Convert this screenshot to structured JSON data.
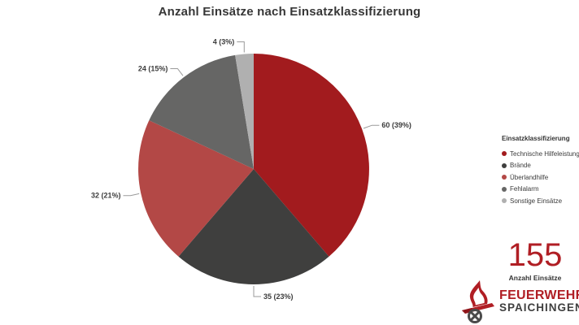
{
  "title": "Anzahl Einsätze nach Einsatzklassifizierung",
  "chart_data": {
    "type": "pie",
    "title": "Anzahl Einsätze nach Einsatzklassifizierung",
    "start_angle_deg": 0,
    "direction": "clockwise",
    "total": 155,
    "data_label_format": "value (percent)",
    "legend_position": "right",
    "series": [
      {
        "name": "Anzahl Einsätze",
        "points": [
          {
            "label": "Technische Hilfeleistung",
            "value": 60,
            "percent": "39%",
            "color": "#a21b1e"
          },
          {
            "label": "Brände",
            "value": 35,
            "percent": "23%",
            "color": "#3f3f3e"
          },
          {
            "label": "Überlandhilfe",
            "value": 32,
            "percent": "21%",
            "color": "#b34846"
          },
          {
            "label": "Fehlalarm",
            "value": 24,
            "percent": "15%",
            "color": "#666665"
          },
          {
            "label": "Sonstige Einsätze",
            "value": 4,
            "percent": "3%",
            "color": "#b0b0b0"
          }
        ]
      }
    ]
  },
  "legend": {
    "title": "Einsatzklassifizierung",
    "items": [
      {
        "label": "Technische Hilfeleistung",
        "color": "#a21b1e"
      },
      {
        "label": "Brände",
        "color": "#3f3f3e"
      },
      {
        "label": "Überlandhilfe",
        "color": "#b34846"
      },
      {
        "label": "Fehlalarm",
        "color": "#666665"
      },
      {
        "label": "Sonstige Einsätze",
        "color": "#b0b0b0"
      }
    ]
  },
  "stat": {
    "value": "155",
    "label": "Anzahl Einsätze",
    "color": "#b01e24"
  },
  "logo": {
    "line1": "FEUERWEHR",
    "line2": "SPAICHINGEN"
  }
}
